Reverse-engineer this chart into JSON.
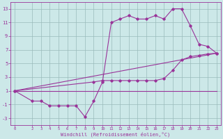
{
  "xlabel": "Windchill (Refroidissement éolien,°C)",
  "bg_color": "#cce8e8",
  "line_color": "#993399",
  "grid_color": "#99bbbb",
  "line1_x": [
    0,
    23
  ],
  "line1_y": [
    1,
    1
  ],
  "line2_x": [
    0,
    2,
    3,
    4,
    5,
    6,
    7,
    8,
    9,
    10,
    11,
    12,
    13,
    14,
    15,
    16,
    17,
    18,
    19,
    20,
    21,
    22,
    23
  ],
  "line2_y": [
    1,
    -0.5,
    -0.5,
    -1.2,
    -1.2,
    -1.2,
    -1.2,
    -2.8,
    -0.5,
    2.3,
    11.0,
    11.5,
    12.0,
    11.5,
    11.5,
    12.0,
    11.5,
    13.0,
    13.0,
    10.5,
    7.8,
    7.5,
    6.5
  ],
  "line3_x": [
    0,
    23
  ],
  "line3_y": [
    1,
    6.5
  ],
  "line4_x": [
    0,
    9,
    10,
    11,
    12,
    13,
    14,
    15,
    16,
    17,
    18,
    19,
    20,
    21,
    22,
    23
  ],
  "line4_y": [
    1,
    2.3,
    2.5,
    2.5,
    2.5,
    2.5,
    2.5,
    2.5,
    2.5,
    2.8,
    4.0,
    5.5,
    6.0,
    6.2,
    6.4,
    6.5
  ],
  "xlim": [
    -0.5,
    23.5
  ],
  "ylim": [
    -4,
    14
  ],
  "yticks": [
    -3,
    -1,
    1,
    3,
    5,
    7,
    9,
    11,
    13
  ],
  "xticks": [
    0,
    2,
    3,
    4,
    5,
    6,
    7,
    8,
    9,
    10,
    11,
    12,
    13,
    14,
    15,
    16,
    17,
    18,
    19,
    20,
    21,
    22,
    23
  ]
}
